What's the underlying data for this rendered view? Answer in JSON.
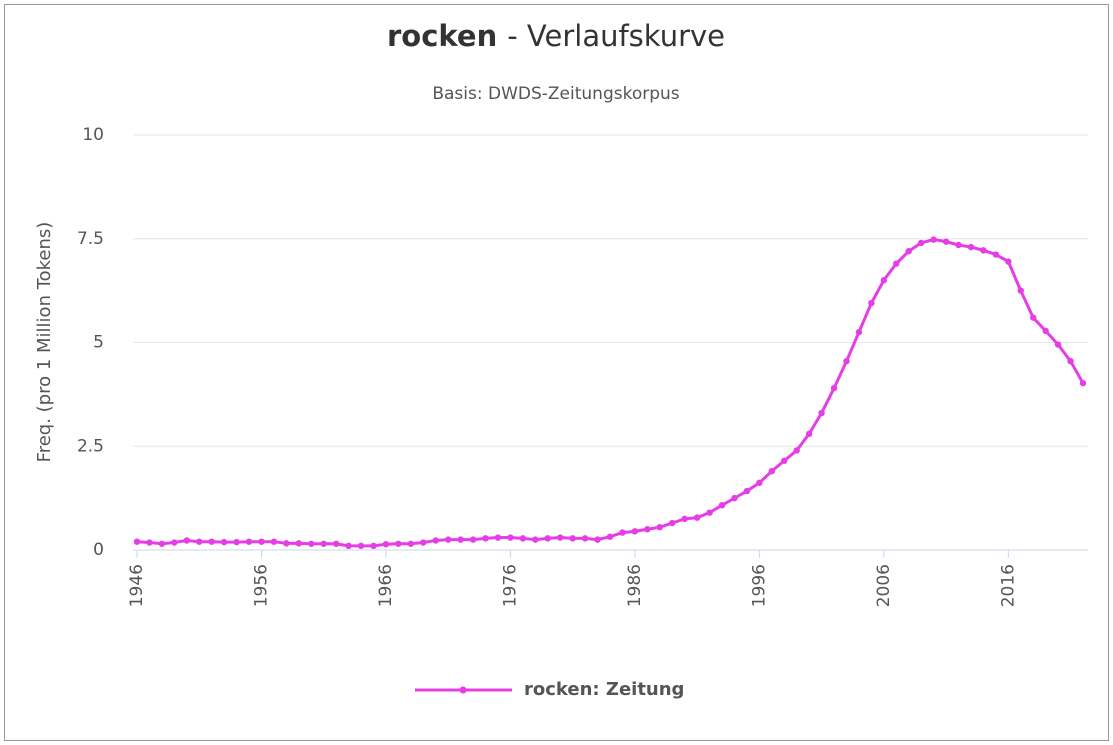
{
  "chart_data": {
    "type": "line",
    "title": {
      "term": "rocken",
      "rest": "- Verlaufskurve"
    },
    "subtitle": "Basis: DWDS-Zeitungskorpus",
    "y_label": "Freq. (pro 1 Million Tokens)",
    "x": [
      1946,
      1947,
      1948,
      1949,
      1950,
      1951,
      1952,
      1953,
      1954,
      1955,
      1956,
      1957,
      1958,
      1959,
      1960,
      1961,
      1962,
      1963,
      1964,
      1965,
      1966,
      1967,
      1968,
      1969,
      1970,
      1971,
      1972,
      1973,
      1974,
      1975,
      1976,
      1977,
      1978,
      1979,
      1980,
      1981,
      1982,
      1983,
      1984,
      1985,
      1986,
      1987,
      1988,
      1989,
      1990,
      1991,
      1992,
      1993,
      1994,
      1995,
      1996,
      1997,
      1998,
      1999,
      2000,
      2001,
      2002,
      2003,
      2004,
      2005,
      2006,
      2007,
      2008,
      2009,
      2010,
      2011,
      2012,
      2013,
      2014,
      2015,
      2016,
      2017,
      2018,
      2019,
      2020,
      2021,
      2022
    ],
    "series": [
      {
        "name": "rocken: Zeitung",
        "color": "#e63ee6",
        "values": [
          0.2,
          0.18,
          0.15,
          0.18,
          0.23,
          0.2,
          0.2,
          0.19,
          0.19,
          0.2,
          0.2,
          0.2,
          0.16,
          0.16,
          0.15,
          0.15,
          0.15,
          0.1,
          0.1,
          0.1,
          0.14,
          0.15,
          0.15,
          0.18,
          0.23,
          0.25,
          0.25,
          0.25,
          0.28,
          0.3,
          0.3,
          0.28,
          0.25,
          0.28,
          0.3,
          0.28,
          0.28,
          0.25,
          0.32,
          0.42,
          0.45,
          0.5,
          0.55,
          0.65,
          0.75,
          0.78,
          0.9,
          1.08,
          1.25,
          1.42,
          1.62,
          1.9,
          2.15,
          2.4,
          2.8,
          3.3,
          3.9,
          4.55,
          5.25,
          5.95,
          6.5,
          6.9,
          7.2,
          7.4,
          7.48,
          7.43,
          7.35,
          7.3,
          7.22,
          7.12,
          6.95,
          6.25,
          5.6,
          5.28,
          4.95,
          4.55,
          4.02
        ]
      }
    ],
    "xlim": [
      1946,
      2022
    ],
    "xticks": [
      1946,
      1956,
      1966,
      1976,
      1986,
      1996,
      2006,
      2016
    ],
    "ylim": [
      0,
      10
    ],
    "yticks": [
      0,
      2.5,
      5,
      7.5,
      10
    ],
    "grid": true,
    "legend": "bottom"
  }
}
